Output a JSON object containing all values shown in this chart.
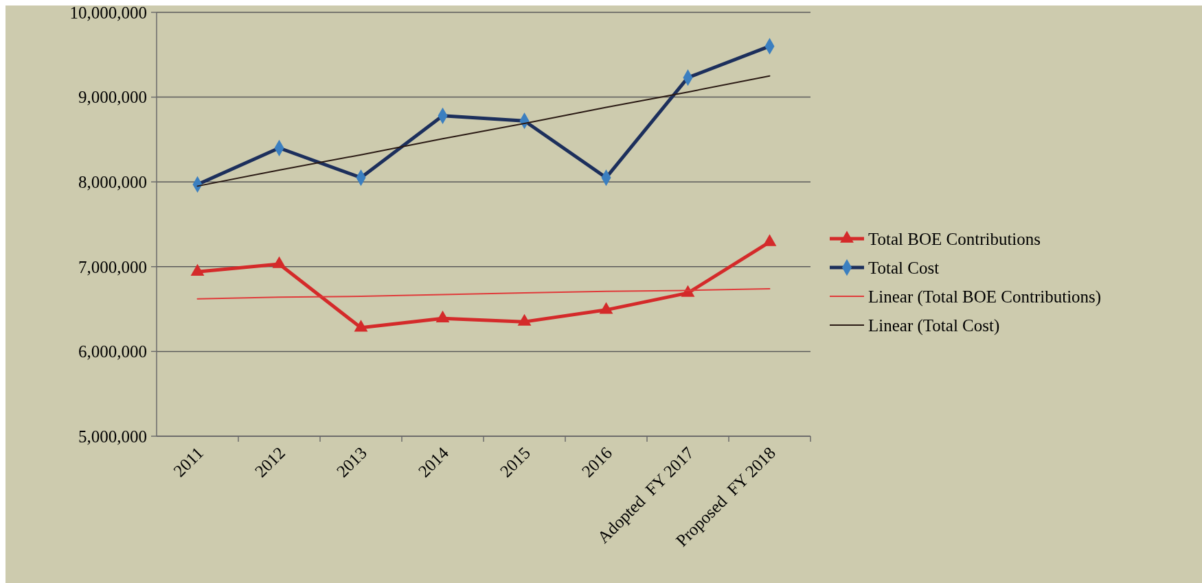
{
  "chart_data": {
    "type": "line",
    "categories": [
      "2011",
      "2012",
      "2013",
      "2014",
      "2015",
      "2016",
      "Adopted  FY 2017",
      "Proposed  FY 2018"
    ],
    "series": [
      {
        "name": "Total BOE Contributions",
        "color": "#d42a2a",
        "marker": "triangle",
        "values": [
          6940000,
          7030000,
          6280000,
          6390000,
          6350000,
          6490000,
          6690000,
          7290000
        ]
      },
      {
        "name": "Total Cost",
        "color": "#1c2f5c",
        "marker": "diamond",
        "values": [
          7970000,
          8400000,
          8050000,
          8780000,
          8720000,
          8050000,
          9230000,
          9600000
        ]
      },
      {
        "name": "Linear (Total BOE Contributions)",
        "color": "#e03a3a",
        "marker": "none",
        "values": [
          6620000,
          6640000,
          6650000,
          6670000,
          6690000,
          6710000,
          6720000,
          6740000
        ]
      },
      {
        "name": "Linear (Total Cost)",
        "color": "#2a1a14",
        "marker": "none",
        "values": [
          7950000,
          8140000,
          8320000,
          8510000,
          8690000,
          8880000,
          9060000,
          9250000
        ]
      }
    ],
    "ylim": [
      5000000,
      10000000
    ],
    "yticks": [
      {
        "value": 5000000,
        "label": "5,000,000"
      },
      {
        "value": 6000000,
        "label": "6,000,000"
      },
      {
        "value": 7000000,
        "label": "7,000,000"
      },
      {
        "value": 8000000,
        "label": "8,000,000"
      },
      {
        "value": 9000000,
        "label": "9,000,000"
      },
      {
        "value": 10000000,
        "label": "10,000,000"
      }
    ],
    "grid": "y",
    "legend": "right"
  }
}
